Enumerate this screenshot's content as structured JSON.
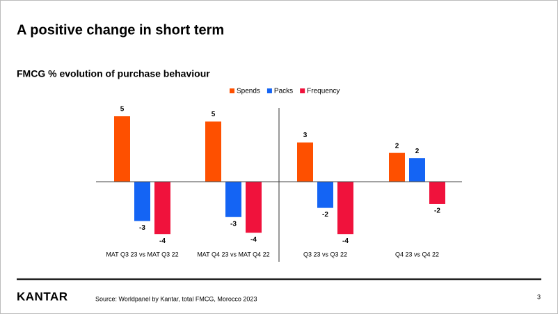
{
  "slide_title": "A positive change in short term",
  "chart_data": {
    "type": "bar",
    "title": "FMCG % evolution of purchase behaviour",
    "categories": [
      "MAT Q3 23 vs MAT Q3 22",
      "MAT Q4 23 vs MAT Q4 22",
      "Q3 23 vs Q3 22",
      "Q4 23 vs Q4 22"
    ],
    "series": [
      {
        "name": "Spends",
        "color": "#fe5000",
        "values": [
          5.0,
          4.6,
          3.0,
          2.2
        ],
        "value_labels": [
          "5",
          "5",
          "3",
          "2"
        ]
      },
      {
        "name": "Packs",
        "color": "#1464f4",
        "values": [
          -3.0,
          -2.7,
          -2.0,
          1.8
        ],
        "value_labels": [
          "-3",
          "-3",
          "-2",
          "2"
        ]
      },
      {
        "name": "Frequency",
        "color": "#f0123c",
        "values": [
          -4.0,
          -3.9,
          -4.0,
          -1.7
        ],
        "value_labels": [
          "-4",
          "-4",
          "-4",
          "-2"
        ]
      }
    ],
    "legend": "top"
  },
  "footer": {
    "logo": "KANTAR",
    "source": "Source: Worldpanel by Kantar, total FMCG, Morocco 2023",
    "page": "3"
  }
}
